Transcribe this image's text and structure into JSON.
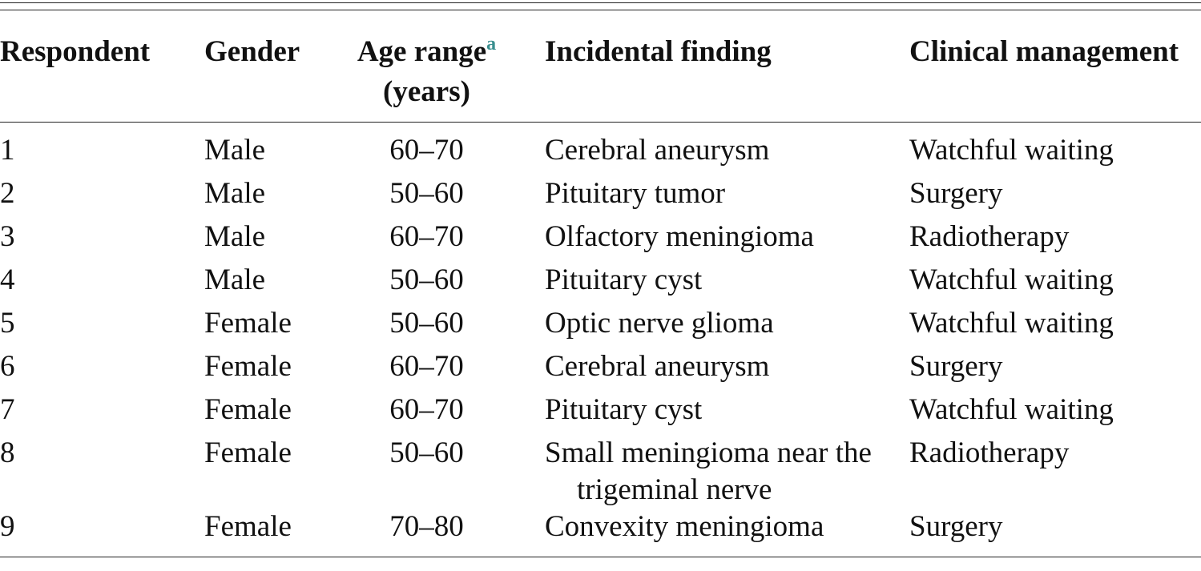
{
  "table": {
    "headers": [
      "Respondent",
      "Gender",
      "Age range",
      "Incidental finding",
      "Clinical management"
    ],
    "age_note": "a",
    "age_unit": "(years)",
    "rows": [
      [
        "1",
        "Male",
        "60–70",
        "Cerebral aneurysm",
        "Watchful waiting"
      ],
      [
        "2",
        "Male",
        "50–60",
        "Pituitary tumor",
        "Surgery"
      ],
      [
        "3",
        "Male",
        "60–70",
        "Olfactory meningioma",
        "Radiotherapy"
      ],
      [
        "4",
        "Male",
        "50–60",
        "Pituitary cyst",
        "Watchful waiting"
      ],
      [
        "5",
        "Female",
        "50–60",
        "Optic nerve glioma",
        "Watchful waiting"
      ],
      [
        "6",
        "Female",
        "60–70",
        "Cerebral aneurysm",
        "Surgery"
      ],
      [
        "7",
        "Female",
        "60–70",
        "Pituitary cyst",
        "Watchful waiting"
      ],
      [
        "8",
        "Female",
        "50–60",
        "Small meningioma near the trigeminal nerve",
        "Radiotherapy"
      ],
      [
        "9",
        "Female",
        "70–80",
        "Convexity meningioma",
        "Surgery"
      ]
    ]
  }
}
